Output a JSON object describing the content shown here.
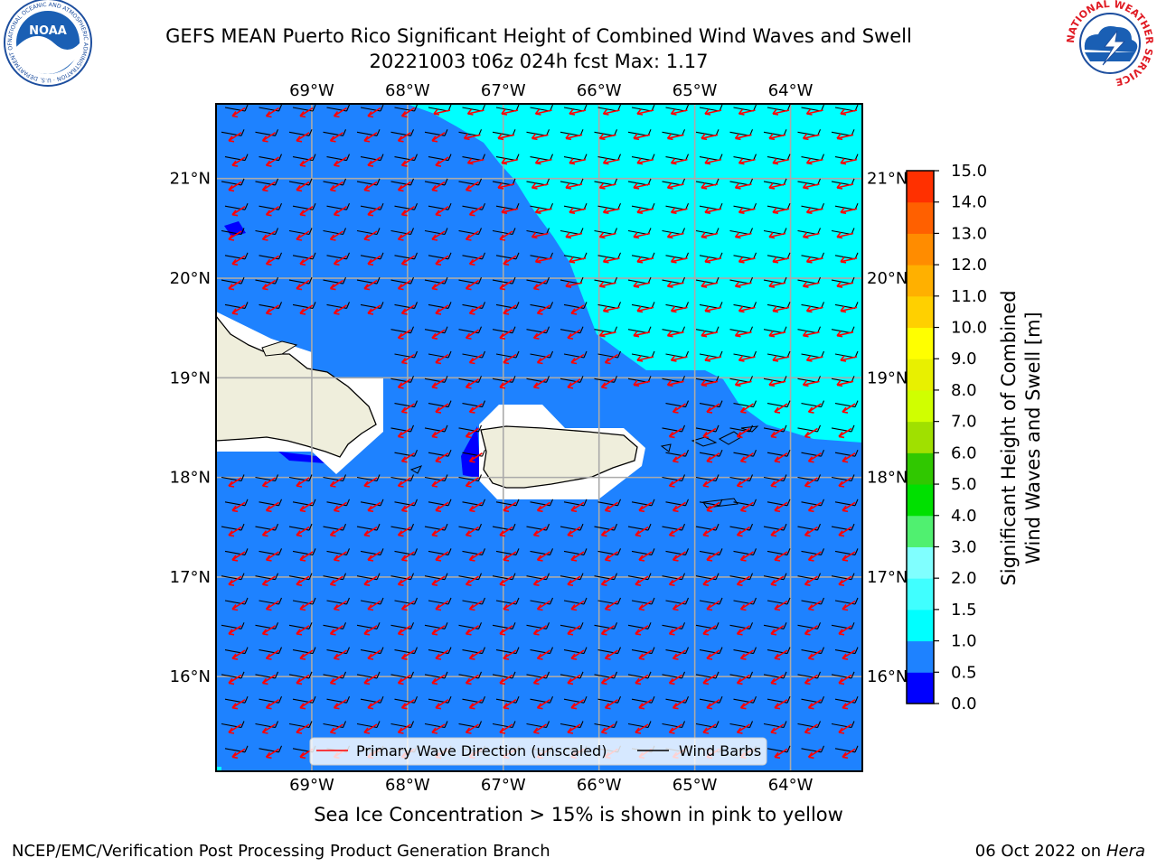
{
  "header": {
    "title_line1": "GEFS MEAN Puerto Rico Significant Height of Combined Wind Waves and Swell",
    "title_line2": "20221003 t06z 024h fcst   Max: 1.17",
    "left_logo_text": "NOAA",
    "left_logo_ring": "NATIONAL OCEANIC AND ATMOSPHERIC ADMINISTRATION · U.S. DEPARTMENT OF COMMERCE",
    "right_logo_ring": "NATIONAL WEATHER SERVICE"
  },
  "chart_data": {
    "type": "heatmap",
    "title": "GEFS MEAN Puerto Rico Significant Height of Combined Wind Waves and Swell",
    "subtitle": "20221003 t06z 024h fcst   Max: 1.17",
    "xlim": [
      -70,
      -63.25
    ],
    "ylim": [
      15.05,
      21.75
    ],
    "x_ticks": [
      -69,
      -68,
      -67,
      -66,
      -65,
      -64
    ],
    "x_tick_labels": [
      "69°W",
      "68°W",
      "67°W",
      "66°W",
      "65°W",
      "64°W"
    ],
    "y_ticks": [
      16,
      17,
      18,
      19,
      20,
      21
    ],
    "y_tick_labels": [
      "16°N",
      "17°N",
      "18°N",
      "19°N",
      "20°N",
      "21°N"
    ],
    "grid": true,
    "max": 1.17,
    "colorbar": {
      "label": "Significant Height of Combined Wind Waves and Swell [m]",
      "label_line1": "Significant Height of Combined",
      "label_line2": "Wind Waves and Swell [m]",
      "levels": [
        0.0,
        0.5,
        1.0,
        1.5,
        2.0,
        3.0,
        4.0,
        5.0,
        6.0,
        7.0,
        8.0,
        9.0,
        10.0,
        11.0,
        12.0,
        13.0,
        14.0,
        15.0
      ],
      "tick_labels": [
        "0.0",
        "0.5",
        "1.0",
        "1.5",
        "2.0",
        "3.0",
        "4.0",
        "5.0",
        "6.0",
        "7.0",
        "8.0",
        "9.0",
        "10.0",
        "11.0",
        "12.0",
        "13.0",
        "14.0",
        "15.0"
      ],
      "colors": [
        "#0000ff",
        "#1e82ff",
        "#00ffff",
        "#40ffff",
        "#80ffff",
        "#50f070",
        "#00e000",
        "#30c800",
        "#a0e000",
        "#d0ff00",
        "#e8f000",
        "#ffff00",
        "#ffd000",
        "#ffb000",
        "#ff8c00",
        "#ff6000",
        "#ff3000"
      ]
    },
    "regions": [
      {
        "name": "waves 0.5-1.0 m",
        "color": "#1e82ff"
      },
      {
        "name": "waves 1.0-1.5 m (northeast)",
        "color": "#00ffff"
      },
      {
        "name": "waves 0.0-0.5 m (sheltered coasts)",
        "color": "#0000ff"
      }
    ],
    "land_color": "#efeedc",
    "wave_arrow_color": "#ff0000",
    "barb_color": "#000000",
    "legend": {
      "placement": "lower-center",
      "entries": [
        {
          "label": "Primary Wave Direction (unscaled)",
          "color": "#ff0000"
        },
        {
          "label": "Wind Barbs",
          "color": "#000000"
        }
      ]
    }
  },
  "notes": {
    "sea_ice": "Sea Ice Concentration > 15% is shown in pink to yellow"
  },
  "footer": {
    "left": "NCEP/EMC/Verification Post Processing Product Generation Branch",
    "right_date": "06 Oct 2022 on ",
    "right_host": "Hera"
  }
}
